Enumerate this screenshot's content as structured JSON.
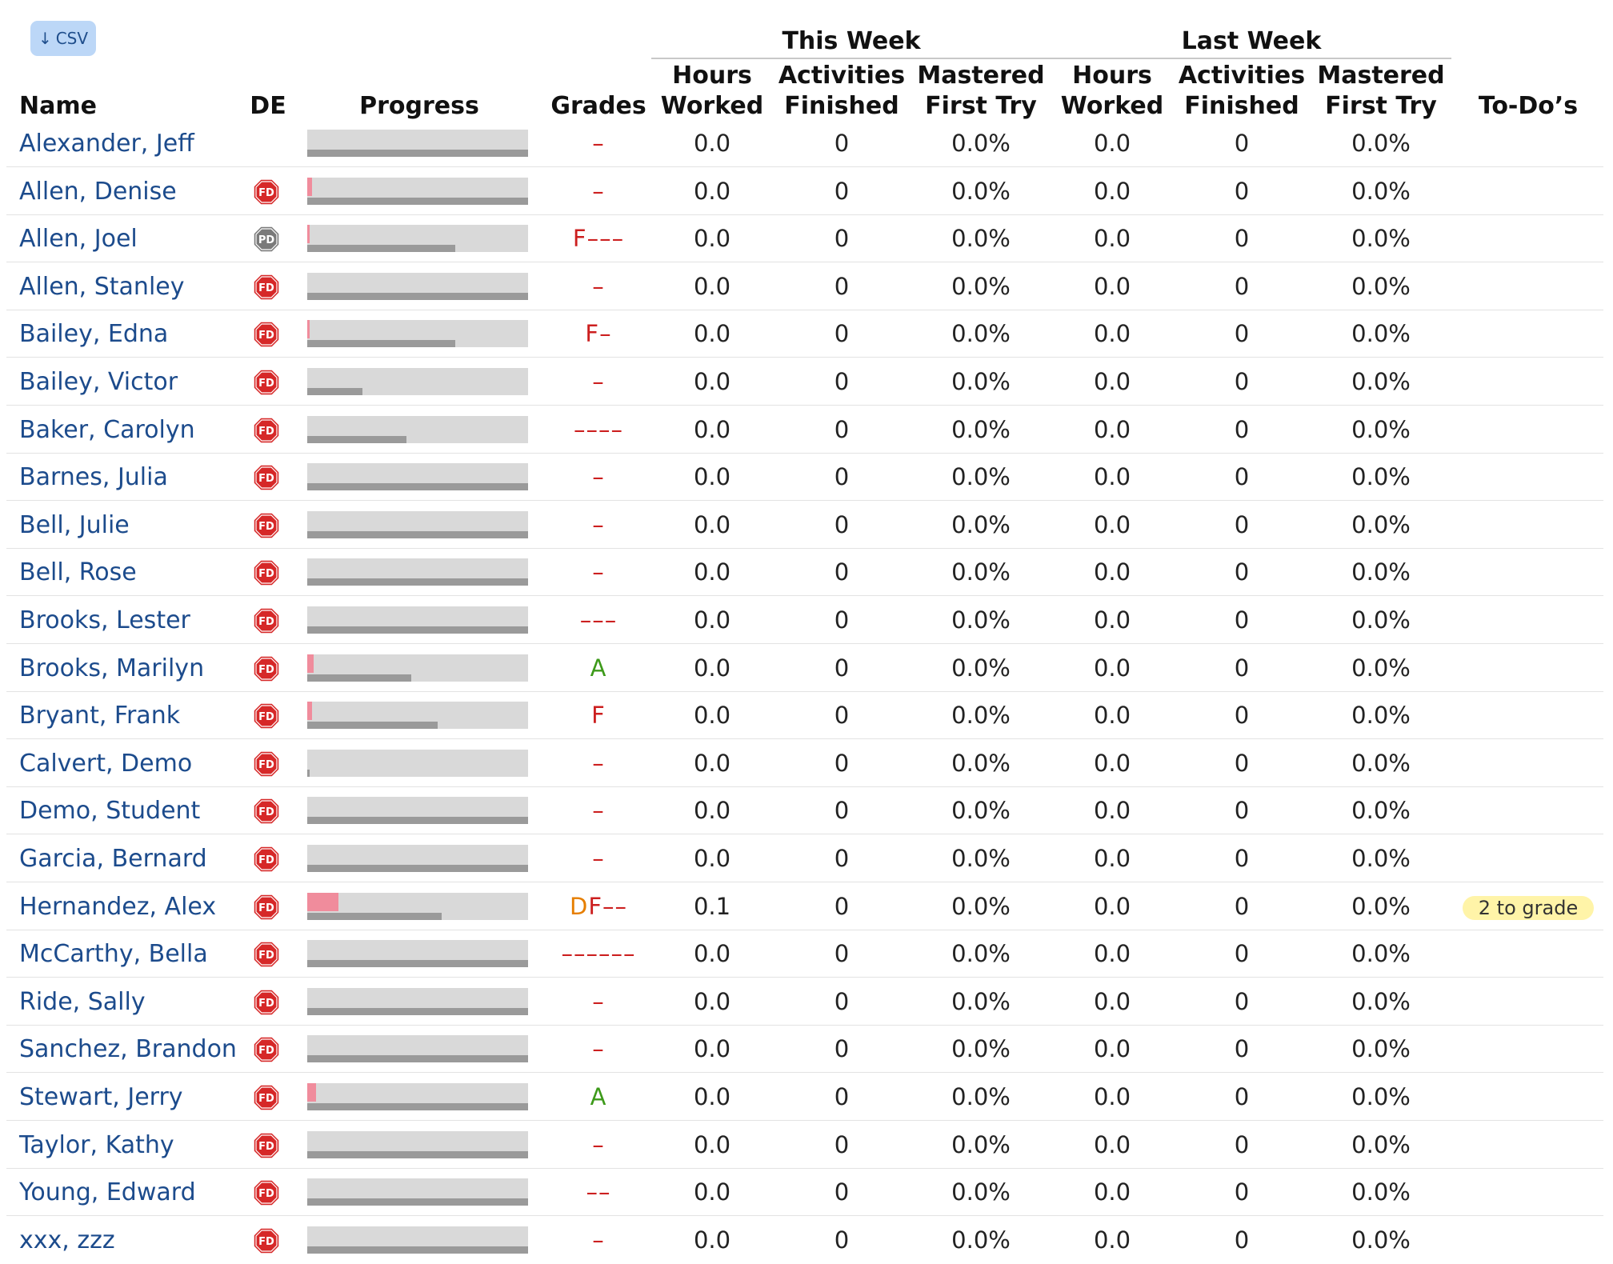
{
  "toolbar": {
    "csv_label": "CSV"
  },
  "header": {
    "group_this_week": "This Week",
    "group_last_week": "Last Week",
    "name": "Name",
    "de": "DE",
    "progress": "Progress",
    "grades": "Grades",
    "hours_worked_1": "Hours",
    "hours_worked_2": "Worked",
    "activities_finished_1": "Activities",
    "activities_finished_2": "Finished",
    "mastered_first_try_1": "Mastered",
    "mastered_first_try_2": "First Try",
    "todos": "To-Do’s"
  },
  "colors": {
    "name_link": "#1c4b8c",
    "grade_fail": "#cc1f1f",
    "grade_pass": "#3d9a1a",
    "grade_d": "#e67e00",
    "badge_fd": "#d62828",
    "badge_pd": "#7a7a7a",
    "progress_track": "#d9d9d9",
    "progress_top": "#f08c9c",
    "progress_bottom": "#9a9a9a",
    "todo_badge": "#fff4a8"
  },
  "students": [
    {
      "name": "Alexander, Jeff",
      "badge": "",
      "top": 0,
      "bot": 1.0,
      "grades": [
        {
          "t": "–",
          "c": "fail"
        }
      ],
      "tw_hours": "0.0",
      "tw_acts": "0",
      "tw_mastered": "0.0%",
      "lw_hours": "0.0",
      "lw_acts": "0",
      "lw_mastered": "0.0%",
      "todo": ""
    },
    {
      "name": "Allen, Denise",
      "badge": "FD",
      "top": 0.02,
      "bot": 1.0,
      "grades": [
        {
          "t": "–",
          "c": "fail"
        }
      ],
      "tw_hours": "0.0",
      "tw_acts": "0",
      "tw_mastered": "0.0%",
      "lw_hours": "0.0",
      "lw_acts": "0",
      "lw_mastered": "0.0%",
      "todo": ""
    },
    {
      "name": "Allen, Joel",
      "badge": "PD",
      "top": 0.01,
      "bot": 0.67,
      "grades": [
        {
          "t": "F–––",
          "c": "fail"
        }
      ],
      "tw_hours": "0.0",
      "tw_acts": "0",
      "tw_mastered": "0.0%",
      "lw_hours": "0.0",
      "lw_acts": "0",
      "lw_mastered": "0.0%",
      "todo": ""
    },
    {
      "name": "Allen, Stanley",
      "badge": "FD",
      "top": 0,
      "bot": 1.0,
      "grades": [
        {
          "t": "–",
          "c": "fail"
        }
      ],
      "tw_hours": "0.0",
      "tw_acts": "0",
      "tw_mastered": "0.0%",
      "lw_hours": "0.0",
      "lw_acts": "0",
      "lw_mastered": "0.0%",
      "todo": ""
    },
    {
      "name": "Bailey, Edna",
      "badge": "FD",
      "top": 0.01,
      "bot": 0.67,
      "grades": [
        {
          "t": "F–",
          "c": "fail"
        }
      ],
      "tw_hours": "0.0",
      "tw_acts": "0",
      "tw_mastered": "0.0%",
      "lw_hours": "0.0",
      "lw_acts": "0",
      "lw_mastered": "0.0%",
      "todo": ""
    },
    {
      "name": "Bailey, Victor",
      "badge": "FD",
      "top": 0,
      "bot": 0.25,
      "grades": [
        {
          "t": "–",
          "c": "fail"
        }
      ],
      "tw_hours": "0.0",
      "tw_acts": "0",
      "tw_mastered": "0.0%",
      "lw_hours": "0.0",
      "lw_acts": "0",
      "lw_mastered": "0.0%",
      "todo": ""
    },
    {
      "name": "Baker, Carolyn",
      "badge": "FD",
      "top": 0,
      "bot": 0.45,
      "grades": [
        {
          "t": "––––",
          "c": "fail"
        }
      ],
      "tw_hours": "0.0",
      "tw_acts": "0",
      "tw_mastered": "0.0%",
      "lw_hours": "0.0",
      "lw_acts": "0",
      "lw_mastered": "0.0%",
      "todo": ""
    },
    {
      "name": "Barnes, Julia",
      "badge": "FD",
      "top": 0,
      "bot": 1.0,
      "grades": [
        {
          "t": "–",
          "c": "fail"
        }
      ],
      "tw_hours": "0.0",
      "tw_acts": "0",
      "tw_mastered": "0.0%",
      "lw_hours": "0.0",
      "lw_acts": "0",
      "lw_mastered": "0.0%",
      "todo": ""
    },
    {
      "name": "Bell, Julie",
      "badge": "FD",
      "top": 0,
      "bot": 1.0,
      "grades": [
        {
          "t": "–",
          "c": "fail"
        }
      ],
      "tw_hours": "0.0",
      "tw_acts": "0",
      "tw_mastered": "0.0%",
      "lw_hours": "0.0",
      "lw_acts": "0",
      "lw_mastered": "0.0%",
      "todo": ""
    },
    {
      "name": "Bell, Rose",
      "badge": "FD",
      "top": 0,
      "bot": 1.0,
      "grades": [
        {
          "t": "–",
          "c": "fail"
        }
      ],
      "tw_hours": "0.0",
      "tw_acts": "0",
      "tw_mastered": "0.0%",
      "lw_hours": "0.0",
      "lw_acts": "0",
      "lw_mastered": "0.0%",
      "todo": ""
    },
    {
      "name": "Brooks, Lester",
      "badge": "FD",
      "top": 0,
      "bot": 1.0,
      "grades": [
        {
          "t": "–––",
          "c": "fail"
        }
      ],
      "tw_hours": "0.0",
      "tw_acts": "0",
      "tw_mastered": "0.0%",
      "lw_hours": "0.0",
      "lw_acts": "0",
      "lw_mastered": "0.0%",
      "todo": ""
    },
    {
      "name": "Brooks, Marilyn",
      "badge": "FD",
      "top": 0.03,
      "bot": 0.47,
      "grades": [
        {
          "t": "A",
          "c": "pass"
        }
      ],
      "tw_hours": "0.0",
      "tw_acts": "0",
      "tw_mastered": "0.0%",
      "lw_hours": "0.0",
      "lw_acts": "0",
      "lw_mastered": "0.0%",
      "todo": ""
    },
    {
      "name": "Bryant, Frank",
      "badge": "FD",
      "top": 0.02,
      "bot": 0.59,
      "grades": [
        {
          "t": "F",
          "c": "fail"
        }
      ],
      "tw_hours": "0.0",
      "tw_acts": "0",
      "tw_mastered": "0.0%",
      "lw_hours": "0.0",
      "lw_acts": "0",
      "lw_mastered": "0.0%",
      "todo": ""
    },
    {
      "name": "Calvert, Demo",
      "badge": "FD",
      "top": 0,
      "bot": 0.01,
      "grades": [
        {
          "t": "–",
          "c": "fail"
        }
      ],
      "tw_hours": "0.0",
      "tw_acts": "0",
      "tw_mastered": "0.0%",
      "lw_hours": "0.0",
      "lw_acts": "0",
      "lw_mastered": "0.0%",
      "todo": ""
    },
    {
      "name": "Demo, Student",
      "badge": "FD",
      "top": 0,
      "bot": 1.0,
      "grades": [
        {
          "t": "–",
          "c": "fail"
        }
      ],
      "tw_hours": "0.0",
      "tw_acts": "0",
      "tw_mastered": "0.0%",
      "lw_hours": "0.0",
      "lw_acts": "0",
      "lw_mastered": "0.0%",
      "todo": ""
    },
    {
      "name": "Garcia, Bernard",
      "badge": "FD",
      "top": 0,
      "bot": 1.0,
      "grades": [
        {
          "t": "–",
          "c": "fail"
        }
      ],
      "tw_hours": "0.0",
      "tw_acts": "0",
      "tw_mastered": "0.0%",
      "lw_hours": "0.0",
      "lw_acts": "0",
      "lw_mastered": "0.0%",
      "todo": ""
    },
    {
      "name": "Hernandez, Alex",
      "badge": "FD",
      "top": 0.14,
      "bot": 0.61,
      "grades": [
        {
          "t": "D",
          "c": "d"
        },
        {
          "t": "F––",
          "c": "fail"
        }
      ],
      "tw_hours": "0.1",
      "tw_acts": "0",
      "tw_mastered": "0.0%",
      "lw_hours": "0.0",
      "lw_acts": "0",
      "lw_mastered": "0.0%",
      "todo": "2 to grade"
    },
    {
      "name": "McCarthy, Bella",
      "badge": "FD",
      "top": 0,
      "bot": 1.0,
      "grades": [
        {
          "t": "––––––",
          "c": "fail"
        }
      ],
      "tw_hours": "0.0",
      "tw_acts": "0",
      "tw_mastered": "0.0%",
      "lw_hours": "0.0",
      "lw_acts": "0",
      "lw_mastered": "0.0%",
      "todo": ""
    },
    {
      "name": "Ride, Sally",
      "badge": "FD",
      "top": 0,
      "bot": 1.0,
      "grades": [
        {
          "t": "–",
          "c": "fail"
        }
      ],
      "tw_hours": "0.0",
      "tw_acts": "0",
      "tw_mastered": "0.0%",
      "lw_hours": "0.0",
      "lw_acts": "0",
      "lw_mastered": "0.0%",
      "todo": ""
    },
    {
      "name": "Sanchez, Brandon",
      "badge": "FD",
      "top": 0,
      "bot": 1.0,
      "grades": [
        {
          "t": "–",
          "c": "fail"
        }
      ],
      "tw_hours": "0.0",
      "tw_acts": "0",
      "tw_mastered": "0.0%",
      "lw_hours": "0.0",
      "lw_acts": "0",
      "lw_mastered": "0.0%",
      "todo": ""
    },
    {
      "name": "Stewart, Jerry",
      "badge": "FD",
      "top": 0.04,
      "bot": 1.0,
      "grades": [
        {
          "t": "A",
          "c": "pass"
        }
      ],
      "tw_hours": "0.0",
      "tw_acts": "0",
      "tw_mastered": "0.0%",
      "lw_hours": "0.0",
      "lw_acts": "0",
      "lw_mastered": "0.0%",
      "todo": ""
    },
    {
      "name": "Taylor, Kathy",
      "badge": "FD",
      "top": 0,
      "bot": 1.0,
      "grades": [
        {
          "t": "–",
          "c": "fail"
        }
      ],
      "tw_hours": "0.0",
      "tw_acts": "0",
      "tw_mastered": "0.0%",
      "lw_hours": "0.0",
      "lw_acts": "0",
      "lw_mastered": "0.0%",
      "todo": ""
    },
    {
      "name": "Young, Edward",
      "badge": "FD",
      "top": 0,
      "bot": 1.0,
      "grades": [
        {
          "t": "––",
          "c": "fail"
        }
      ],
      "tw_hours": "0.0",
      "tw_acts": "0",
      "tw_mastered": "0.0%",
      "lw_hours": "0.0",
      "lw_acts": "0",
      "lw_mastered": "0.0%",
      "todo": ""
    },
    {
      "name": "xxx, zzz",
      "badge": "FD",
      "top": 0,
      "bot": 1.0,
      "grades": [
        {
          "t": "–",
          "c": "fail"
        }
      ],
      "tw_hours": "0.0",
      "tw_acts": "0",
      "tw_mastered": "0.0%",
      "lw_hours": "0.0",
      "lw_acts": "0",
      "lw_mastered": "0.0%",
      "todo": ""
    }
  ]
}
